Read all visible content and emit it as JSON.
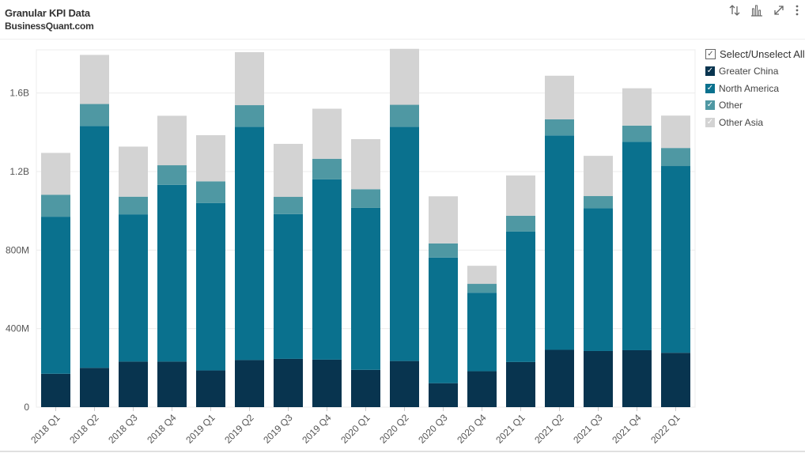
{
  "header": {
    "title": "Granular KPI Data",
    "subtitle": "BusinessQuant.com"
  },
  "toolbar": {
    "icons": [
      "sort-icon",
      "bar-chart-icon",
      "expand-icon",
      "more-vertical-icon"
    ]
  },
  "legend": {
    "select_all_label": "Select/Unselect All",
    "checkmark": "✓"
  },
  "colors": {
    "Greater China": "#08344f",
    "North America": "#0a718e",
    "Other": "#4f98a3",
    "Other Asia": "#d3d3d3"
  },
  "chart_data": {
    "type": "bar",
    "stacked": true,
    "categories": [
      "2018 Q1",
      "2018 Q2",
      "2018 Q3",
      "2018 Q4",
      "2019 Q1",
      "2019 Q2",
      "2019 Q3",
      "2019 Q4",
      "2020 Q1",
      "2020 Q2",
      "2020 Q3",
      "2020 Q4",
      "2021 Q1",
      "2021 Q2",
      "2021 Q3",
      "2021 Q4",
      "2022 Q1"
    ],
    "series": [
      {
        "name": "Greater China",
        "values": [
          170,
          200,
          232,
          232,
          187,
          240,
          246,
          242,
          190,
          235,
          122,
          183,
          230,
          292,
          286,
          290,
          277
        ]
      },
      {
        "name": "North America",
        "values": [
          800,
          1232,
          750,
          900,
          853,
          1188,
          737,
          918,
          825,
          1193,
          640,
          400,
          665,
          1092,
          727,
          1062,
          951
        ]
      },
      {
        "name": "Other",
        "values": [
          112,
          112,
          90,
          100,
          110,
          110,
          88,
          105,
          95,
          112,
          72,
          45,
          80,
          82,
          62,
          82,
          92
        ]
      },
      {
        "name": "Other Asia",
        "values": [
          213,
          250,
          255,
          252,
          235,
          270,
          270,
          255,
          255,
          285,
          240,
          92,
          205,
          222,
          205,
          190,
          165
        ]
      }
    ],
    "y_ticks": [
      {
        "value": 0,
        "label": "0"
      },
      {
        "value": 400,
        "label": "400M"
      },
      {
        "value": 800,
        "label": "800M"
      },
      {
        "value": 1200,
        "label": "1.2B"
      },
      {
        "value": 1600,
        "label": "1.6B"
      }
    ],
    "ylim": [
      0,
      1820
    ],
    "units": "millions",
    "grid": true,
    "legend_position": "right"
  }
}
